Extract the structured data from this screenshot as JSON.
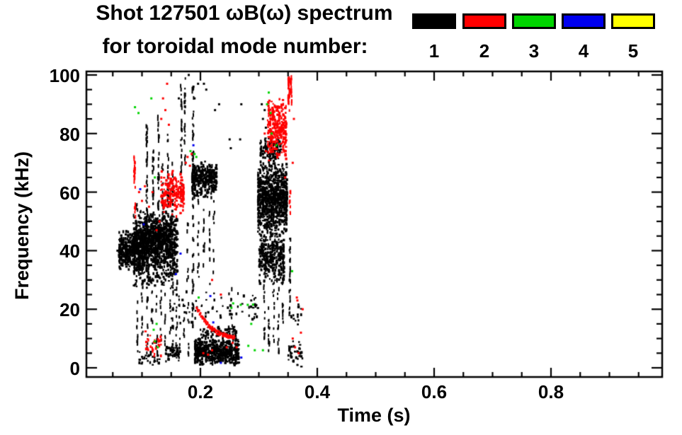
{
  "title": {
    "line1": "Shot 127501 ωB(ω) spectrum",
    "line2": "for toroidal mode number:"
  },
  "legend": {
    "modes": [
      {
        "label": "1",
        "color": "#000000"
      },
      {
        "label": "2",
        "color": "#ff0000"
      },
      {
        "label": "3",
        "color": "#00d400"
      },
      {
        "label": "4",
        "color": "#0000ee"
      },
      {
        "label": "5",
        "color": "#ffff00"
      }
    ]
  },
  "chart_data": {
    "type": "scatter",
    "title": "Shot 127501 ωB(ω) spectrum for toroidal mode number: 1 2 3 4 5",
    "xlabel": "Time (s)",
    "ylabel": "Frequency (kHz)",
    "xlim": [
      0.0,
      1.0
    ],
    "ylim": [
      0,
      100
    ],
    "xticks": [
      0.2,
      0.4,
      0.6,
      0.8
    ],
    "xtick_labels": [
      "0.2",
      "0.4",
      "0.6",
      "0.8"
    ],
    "yticks": [
      0,
      20,
      40,
      60,
      80,
      100
    ],
    "ytick_labels": [
      "0",
      "20",
      "40",
      "60",
      "80",
      "100"
    ],
    "x_minor_step": 0.05,
    "y_minor_step": 5,
    "grid": false,
    "legend_position": "top",
    "series": [
      {
        "name": "n=1",
        "mode": 1,
        "color": "#000000",
        "clusters": [
          {
            "type": "blob",
            "t": [
              0.06,
              0.105
            ],
            "f": [
              33,
              48
            ],
            "n": 450
          },
          {
            "type": "blob",
            "t": [
              0.085,
              0.16
            ],
            "f": [
              27,
              55
            ],
            "n": 850
          },
          {
            "type": "blob",
            "t": [
              0.1,
              0.15
            ],
            "f": [
              38,
              52
            ],
            "n": 350
          },
          {
            "type": "vline",
            "t": 0.09,
            "f": [
              48,
              58
            ],
            "n": 8
          },
          {
            "type": "vline",
            "t": 0.107,
            "f": [
              48,
              84
            ],
            "n": 40
          },
          {
            "type": "vline",
            "t": 0.118,
            "f": [
              50,
              76
            ],
            "n": 28
          },
          {
            "type": "vline",
            "t": 0.127,
            "f": [
              45,
              88
            ],
            "n": 34
          },
          {
            "type": "vline",
            "t": 0.134,
            "f": [
              50,
              70
            ],
            "n": 18
          },
          {
            "type": "vline",
            "t": 0.143,
            "f": [
              55,
              80
            ],
            "n": 24
          },
          {
            "type": "vline",
            "t": 0.151,
            "f": [
              50,
              72
            ],
            "n": 18
          },
          {
            "type": "vline",
            "t": 0.166,
            "f": [
              55,
              97
            ],
            "n": 28
          },
          {
            "type": "vline",
            "t": 0.172,
            "f": [
              70,
              100
            ],
            "n": 22
          },
          {
            "type": "vline",
            "t": 0.186,
            "f": [
              10,
              97
            ],
            "n": 65
          },
          {
            "type": "vline",
            "t": 0.091,
            "f": [
              6,
              28
            ],
            "n": 11
          },
          {
            "type": "vline",
            "t": 0.099,
            "f": [
              10,
              30
            ],
            "n": 9
          },
          {
            "type": "vline",
            "t": 0.108,
            "f": [
              4,
              26
            ],
            "n": 11
          },
          {
            "type": "vline",
            "t": 0.116,
            "f": [
              8,
              28
            ],
            "n": 9
          },
          {
            "type": "vline",
            "t": 0.124,
            "f": [
              3,
              25
            ],
            "n": 11
          },
          {
            "type": "vline",
            "t": 0.131,
            "f": [
              10,
              27
            ],
            "n": 8
          },
          {
            "type": "vline",
            "t": 0.139,
            "f": [
              5,
              26
            ],
            "n": 9
          },
          {
            "type": "vline",
            "t": 0.147,
            "f": [
              12,
              30
            ],
            "n": 8
          },
          {
            "type": "vline",
            "t": 0.1515,
            "f": [
              2,
              30
            ],
            "n": 12
          },
          {
            "type": "vline",
            "t": 0.158,
            "f": [
              8,
              28
            ],
            "n": 8
          },
          {
            "type": "vline",
            "t": 0.163,
            "f": [
              8,
              25
            ],
            "n": 7
          },
          {
            "type": "vline",
            "t": 0.17,
            "f": [
              2,
              22
            ],
            "n": 7
          },
          {
            "type": "vline",
            "t": 0.177,
            "f": [
              28,
              50
            ],
            "n": 9
          },
          {
            "type": "vline",
            "t": 0.178,
            "f": [
              5,
              25
            ],
            "n": 7
          },
          {
            "type": "blob",
            "t": [
              0.095,
              0.135
            ],
            "f": [
              1,
              6
            ],
            "n": 28
          },
          {
            "type": "blob",
            "t": [
              0.14,
              0.165
            ],
            "f": [
              2,
              9
            ],
            "n": 55
          },
          {
            "type": "blob",
            "t": [
              0.185,
              0.228
            ],
            "f": [
              58,
              71
            ],
            "n": 330
          },
          {
            "type": "vline",
            "t": 0.195,
            "f": [
              30,
              58
            ],
            "n": 13
          },
          {
            "type": "vline",
            "t": 0.205,
            "f": [
              35,
              58
            ],
            "n": 11
          },
          {
            "type": "vline",
            "t": 0.214,
            "f": [
              28,
              58
            ],
            "n": 11
          },
          {
            "type": "vline",
            "t": 0.222,
            "f": [
              33,
              58
            ],
            "n": 9
          },
          {
            "type": "blob",
            "t": [
              0.19,
              0.268
            ],
            "f": [
              1,
              11
            ],
            "n": 560
          },
          {
            "type": "blob",
            "t": [
              0.2,
              0.26
            ],
            "f": [
              10,
              15
            ],
            "n": 70
          },
          {
            "type": "blob",
            "t": [
              0.15,
              0.3
            ],
            "f": [
              13,
              28
            ],
            "n": 65
          },
          {
            "type": "vline",
            "t": 0.252,
            "f": [
              14,
              28
            ],
            "n": 9
          },
          {
            "type": "blob",
            "t": [
              0.298,
              0.348
            ],
            "f": [
              45,
              72
            ],
            "n": 850
          },
          {
            "type": "blob",
            "t": [
              0.3,
              0.345
            ],
            "f": [
              28,
              48
            ],
            "n": 330
          },
          {
            "type": "blob",
            "t": [
              0.302,
              0.34
            ],
            "f": [
              70,
              80
            ],
            "n": 110
          },
          {
            "type": "vline",
            "t": 0.308,
            "f": [
              10,
              30
            ],
            "n": 14
          },
          {
            "type": "vline",
            "t": 0.316,
            "f": [
              5,
              28
            ],
            "n": 14
          },
          {
            "type": "vline",
            "t": 0.324,
            "f": [
              8,
              30
            ],
            "n": 11
          },
          {
            "type": "vline",
            "t": 0.332,
            "f": [
              4,
              28
            ],
            "n": 14
          },
          {
            "type": "vline",
            "t": 0.34,
            "f": [
              10,
              30
            ],
            "n": 11
          },
          {
            "type": "vline",
            "t": 0.352,
            "f": [
              18,
              45
            ],
            "n": 26
          },
          {
            "type": "blob",
            "t": [
              0.35,
              0.376
            ],
            "f": [
              0,
              10
            ],
            "n": 36
          },
          {
            "type": "blob",
            "t": [
              0.355,
              0.372
            ],
            "f": [
              12,
              26
            ],
            "n": 13
          },
          {
            "type": "pts",
            "pts": [
              [
                0.188,
                96
              ],
              [
                0.19,
                92
              ],
              [
                0.196,
                97
              ],
              [
                0.206,
                97
              ],
              [
                0.21,
                95
              ],
              [
                0.225,
                88
              ],
              [
                0.232,
                90
              ],
              [
                0.25,
                78
              ],
              [
                0.252,
                75
              ],
              [
                0.268,
                78
              ],
              [
                0.27,
                90
              ],
              [
                0.18,
                100
              ],
              [
                0.163,
                92
              ],
              [
                0.305,
                90
              ],
              [
                0.307,
                85
              ],
              [
                0.31,
                88
              ],
              [
                0.312,
                82
              ],
              [
                0.287,
                23
              ],
              [
                0.058,
                40
              ]
            ]
          }
        ]
      },
      {
        "name": "n=2",
        "mode": 2,
        "color": "#ff0000",
        "clusters": [
          {
            "type": "vline",
            "t": 0.086,
            "f": [
              62,
              73
            ],
            "n": 22
          },
          {
            "type": "vline",
            "t": 0.0865,
            "f": [
              50,
              58
            ],
            "n": 7
          },
          {
            "type": "pts",
            "pts": [
              [
                0.095,
                60
              ],
              [
                0.1,
                57
              ],
              [
                0.105,
                62
              ],
              [
                0.112,
                55
              ],
              [
                0.118,
                60
              ],
              [
                0.125,
                47
              ],
              [
                0.13,
                50
              ],
              [
                0.133,
                85
              ],
              [
                0.136,
                92
              ],
              [
                0.14,
                88
              ],
              [
                0.143,
                97
              ],
              [
                0.146,
                83
              ],
              [
                0.168,
                65
              ],
              [
                0.175,
                70
              ],
              [
                0.178,
                72
              ],
              [
                0.182,
                69
              ],
              [
                0.185,
                73
              ]
            ]
          },
          {
            "type": "blob",
            "t": [
              0.132,
              0.172
            ],
            "f": [
              52,
              68
            ],
            "n": 200
          },
          {
            "type": "blob",
            "t": [
              0.105,
              0.135
            ],
            "f": [
              4,
              13
            ],
            "n": 32
          },
          {
            "type": "chirp",
            "t": [
              0.193,
              0.258
            ],
            "f_start": 21,
            "f_end": 9.5,
            "n": 85
          },
          {
            "type": "pts",
            "pts": [
              [
                0.205,
                5
              ],
              [
                0.213,
                4.5
              ],
              [
                0.22,
                6
              ],
              [
                0.245,
                7
              ],
              [
                0.255,
                8.5
              ],
              [
                0.262,
                7
              ]
            ]
          },
          {
            "type": "blob",
            "t": [
              0.315,
              0.347
            ],
            "f": [
              70,
              94
            ],
            "n": 280
          },
          {
            "type": "vline",
            "t": 0.35,
            "f": [
              88,
              100
            ],
            "n": 32
          },
          {
            "type": "vline",
            "t": 0.354,
            "f": [
              90,
              100
            ],
            "n": 18
          },
          {
            "type": "vline",
            "t": 0.352,
            "f": [
              52,
              62
            ],
            "n": 9
          },
          {
            "type": "pts",
            "pts": [
              [
                0.31,
                80
              ],
              [
                0.312,
                74
              ],
              [
                0.358,
                70
              ],
              [
                0.36,
                85
              ],
              [
                0.345,
                65
              ],
              [
                0.358,
                10
              ],
              [
                0.362,
                7
              ],
              [
                0.365,
                24
              ],
              [
                0.366,
                23
              ],
              [
                0.368,
                5
              ],
              [
                0.372,
                12
              ],
              [
                0.375,
                20
              ],
              [
                0.22,
                30
              ],
              [
                0.235,
                25
              ]
            ]
          }
        ]
      },
      {
        "name": "n=3",
        "mode": 3,
        "color": "#00d400",
        "clusters": [
          {
            "type": "pts",
            "pts": [
              [
                0.088,
                89
              ],
              [
                0.094,
                87
              ],
              [
                0.116,
                92
              ],
              [
                0.122,
                65
              ],
              [
                0.12,
                13
              ],
              [
                0.122,
                9
              ],
              [
                0.125,
                15
              ],
              [
                0.127,
                7
              ],
              [
                0.183,
                74
              ],
              [
                0.19,
                73
              ],
              [
                0.193,
                72
              ],
              [
                0.197,
                24
              ],
              [
                0.253,
                20.5
              ],
              [
                0.256,
                22
              ],
              [
                0.269,
                21.5
              ],
              [
                0.281,
                21.5
              ],
              [
                0.29,
                21.6
              ],
              [
                0.282,
                7.5
              ],
              [
                0.293,
                6
              ],
              [
                0.287,
                15
              ],
              [
                0.307,
                6
              ],
              [
                0.314,
                90
              ],
              [
                0.317,
                94
              ],
              [
                0.32,
                87
              ],
              [
                0.322,
                80
              ],
              [
                0.33,
                76
              ],
              [
                0.357,
                33
              ]
            ]
          }
        ]
      },
      {
        "name": "n=4",
        "mode": 4,
        "color": "#0000ee",
        "clusters": [
          {
            "type": "pts",
            "pts": [
              [
                0.097,
                61
              ],
              [
                0.103,
                49
              ],
              [
                0.158,
                32
              ],
              [
                0.166,
                39
              ],
              [
                0.188,
                76
              ],
              [
                0.217,
                24.5
              ],
              [
                0.222,
                15.5
              ],
              [
                0.27,
                3.5
              ],
              [
                0.235,
                1.7
              ]
            ]
          }
        ]
      },
      {
        "name": "n=5",
        "mode": 5,
        "color": "#ffff00",
        "clusters": [
          {
            "type": "pts",
            "pts": []
          }
        ]
      }
    ]
  }
}
